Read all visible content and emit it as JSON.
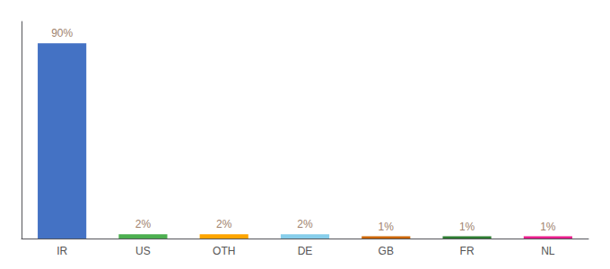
{
  "chart_data": {
    "type": "bar",
    "categories": [
      "IR",
      "US",
      "OTH",
      "DE",
      "GB",
      "FR",
      "NL"
    ],
    "values": [
      90,
      2,
      2,
      2,
      1,
      1,
      1
    ],
    "value_labels": [
      "90%",
      "2%",
      "2%",
      "2%",
      "1%",
      "1%",
      "1%"
    ],
    "colors": [
      "#4472c4",
      "#4CAF50",
      "#FFA500",
      "#87CEEB",
      "#CC6600",
      "#2E7D32",
      "#E91E8C"
    ],
    "ylim": [
      0,
      100
    ],
    "data_labels": true,
    "tick_labels": "x",
    "grid": false
  }
}
